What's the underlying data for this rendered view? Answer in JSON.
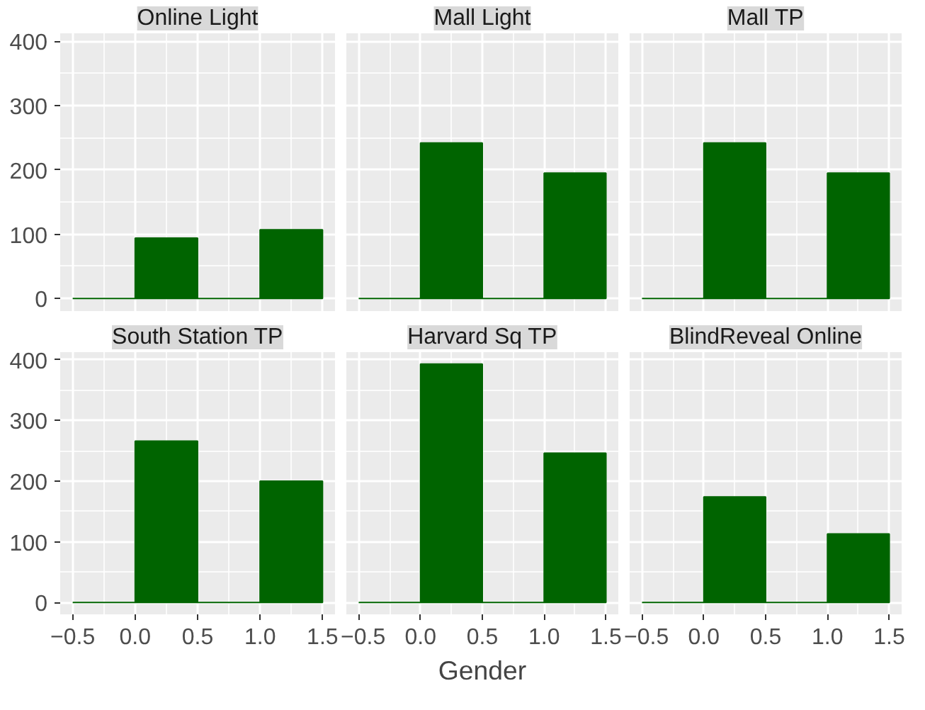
{
  "chart_data": [
    {
      "type": "histogram",
      "title": "Online Light",
      "bins": [
        -0.5,
        0,
        0.5,
        1,
        1.5
      ],
      "values": [
        0,
        94,
        0,
        107
      ],
      "color": "#006400",
      "xlim": [
        -0.6,
        1.6
      ],
      "ylim": [
        -19.6,
        412.6
      ],
      "xticks": [
        -0.5,
        0,
        0.5,
        1,
        1.5
      ],
      "yticks": [
        0,
        100,
        200,
        300,
        400
      ],
      "grid": true,
      "tick_labels": "y"
    },
    {
      "type": "histogram",
      "title": "Mall Light",
      "bins": [
        -0.5,
        0,
        0.5,
        1,
        1.5
      ],
      "values": [
        0,
        242,
        0,
        195
      ],
      "color": "#006400",
      "xlim": [
        -0.6,
        1.6
      ],
      "ylim": [
        -19.6,
        412.6
      ],
      "xticks": [
        -0.5,
        0,
        0.5,
        1,
        1.5
      ],
      "yticks": [
        0,
        100,
        200,
        300,
        400
      ],
      "grid": true,
      "tick_labels": false
    },
    {
      "type": "histogram",
      "title": "Mall TP",
      "bins": [
        -0.5,
        0,
        0.5,
        1,
        1.5
      ],
      "values": [
        0,
        242,
        0,
        195
      ],
      "color": "#006400",
      "xlim": [
        -0.6,
        1.6
      ],
      "ylim": [
        -19.6,
        412.6
      ],
      "xticks": [
        -0.5,
        0,
        0.5,
        1,
        1.5
      ],
      "yticks": [
        0,
        100,
        200,
        300,
        400
      ],
      "grid": true,
      "tick_labels": false
    },
    {
      "type": "histogram",
      "title": "South Station TP",
      "bins": [
        -0.5,
        0,
        0.5,
        1,
        1.5
      ],
      "values": [
        0,
        266,
        0,
        200
      ],
      "color": "#006400",
      "xlim": [
        -0.6,
        1.6
      ],
      "ylim": [
        -19.6,
        412.6
      ],
      "xticks": [
        {
          "value": -0.5,
          "label": "−0.5"
        },
        {
          "value": 0,
          "label": "0.0"
        },
        {
          "value": 0.5,
          "label": "0.5"
        },
        {
          "value": 1,
          "label": "1.0"
        },
        {
          "value": 1.5,
          "label": "1.5"
        }
      ],
      "yticks": [
        0,
        100,
        200,
        300,
        400
      ],
      "grid": true
    },
    {
      "type": "histogram",
      "title": "Harvard Sq TP",
      "xlabel": "Gender",
      "bins": [
        -0.5,
        0,
        0.5,
        1,
        1.5
      ],
      "values": [
        0,
        393,
        0,
        246
      ],
      "color": "#006400",
      "xlim": [
        -0.6,
        1.6
      ],
      "ylim": [
        -19.6,
        412.6
      ],
      "xticks": [
        {
          "value": -0.5,
          "label": "−0.5"
        },
        {
          "value": 0,
          "label": "0.0"
        },
        {
          "value": 0.5,
          "label": "0.5"
        },
        {
          "value": 1,
          "label": "1.0"
        },
        {
          "value": 1.5,
          "label": "1.5"
        }
      ],
      "yticks": [
        0,
        100,
        200,
        300,
        400
      ],
      "grid": true,
      "tick_labels": "x"
    },
    {
      "type": "histogram",
      "title": "BlindReveal Online",
      "bins": [
        -0.5,
        0,
        0.5,
        1,
        1.5
      ],
      "values": [
        0,
        174,
        0,
        113
      ],
      "color": "#006400",
      "xlim": [
        -0.6,
        1.6
      ],
      "ylim": [
        -19.6,
        412.6
      ],
      "xticks": [
        {
          "value": -0.5,
          "label": "−0.5"
        },
        {
          "value": 0,
          "label": "0.0"
        },
        {
          "value": 0.5,
          "label": "0.5"
        },
        {
          "value": 1,
          "label": "1.0"
        },
        {
          "value": 1.5,
          "label": "1.5"
        }
      ],
      "yticks": [
        0,
        100,
        200,
        300,
        400
      ],
      "grid": true,
      "tick_labels": "x"
    }
  ]
}
